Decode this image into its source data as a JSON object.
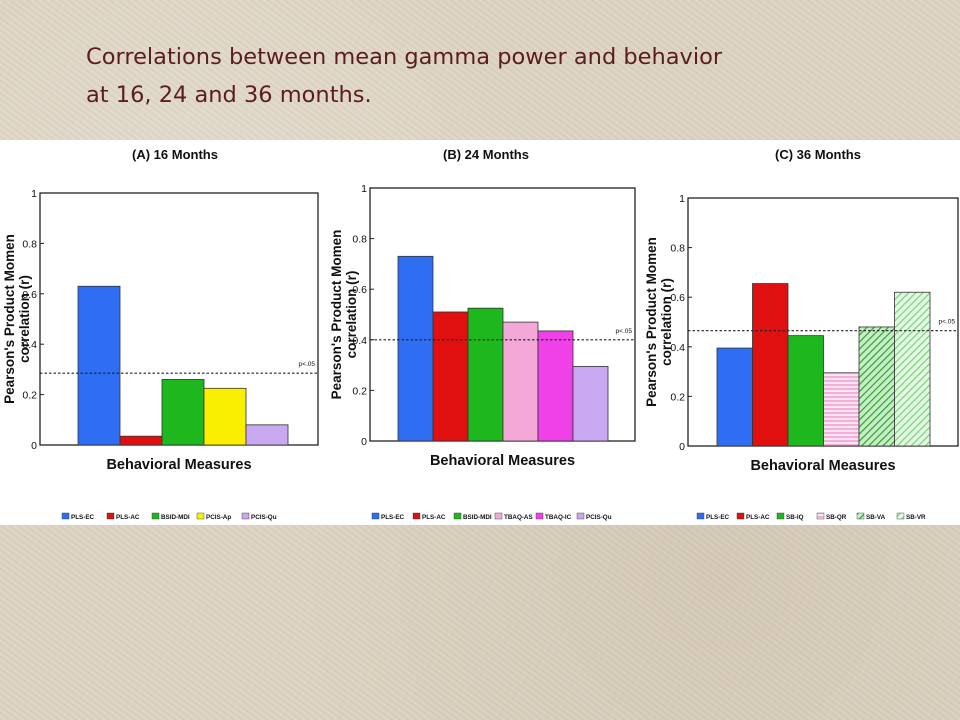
{
  "slide": {
    "title_line1": "Correlations between mean gamma power and behavior",
    "title_line2": "at 16, 24 and 36 months."
  },
  "chart_data": [
    {
      "type": "bar",
      "title": "(A) 16 Months",
      "xlabel": "Behavioral Measures",
      "ylabel": "Pearson's Product Momen correlation (r)",
      "ylim": [
        0,
        1
      ],
      "yticks": [
        "0",
        "0.2",
        "0.4",
        "0.6",
        "0.8",
        "1"
      ],
      "threshold": {
        "value": 0.285,
        "label": "p<.05"
      },
      "categories": [
        "PLS-EC",
        "PLS-AC",
        "BSID-MDI",
        "PCIS-Ap",
        "PCIS-Qu"
      ],
      "values": [
        0.63,
        0.035,
        0.26,
        0.225,
        0.08
      ],
      "colors": [
        "#2f6ef2",
        "#e01010",
        "#1eb81e",
        "#f8f000",
        "#c8a8f0"
      ],
      "patterns": [
        "solid",
        "solid",
        "solid",
        "solid",
        "solid"
      ],
      "grid": false,
      "legend_position": "bottom"
    },
    {
      "type": "bar",
      "title": "(B) 24 Months",
      "xlabel": "Behavioral Measures",
      "ylabel": "Pearson's Product Momen correlation (r)",
      "ylim": [
        0,
        1
      ],
      "yticks": [
        "0",
        "0.2",
        "0.4",
        "0.6",
        "0.8",
        "1"
      ],
      "threshold": {
        "value": 0.4,
        "label": "p<.05"
      },
      "categories": [
        "PLS-EC",
        "PLS-AC",
        "BSID-MDI",
        "TBAQ-AS",
        "TBAQ-IC",
        "PCIS-Qu"
      ],
      "values": [
        0.73,
        0.51,
        0.525,
        0.47,
        0.435,
        0.295
      ],
      "colors": [
        "#2f6ef2",
        "#e01010",
        "#1eb81e",
        "#f4a8d8",
        "#f040e8",
        "#c8a8f0"
      ],
      "patterns": [
        "solid",
        "solid",
        "solid",
        "solid",
        "solid",
        "solid"
      ],
      "grid": false,
      "legend_position": "bottom"
    },
    {
      "type": "bar",
      "title": "(C) 36 Months",
      "xlabel": "Behavioral Measures",
      "ylabel": "Pearson's Product Momen correlation (r)",
      "ylim": [
        0,
        1
      ],
      "yticks": [
        "0",
        "0.2",
        "0.4",
        "0.6",
        "0.8",
        "1"
      ],
      "threshold": {
        "value": 0.465,
        "label": "p<.05"
      },
      "categories": [
        "PLS-EC",
        "PLS-AC",
        "SB-IQ",
        "SB-QR",
        "SB-VA",
        "SB-VR"
      ],
      "values": [
        0.395,
        0.655,
        0.445,
        0.295,
        0.48,
        0.62
      ],
      "colors": [
        "#2f6ef2",
        "#e01010",
        "#1eb81e",
        "#f8c8e8",
        "#28b828",
        "#88e088"
      ],
      "patterns": [
        "solid",
        "solid",
        "solid",
        "hlines",
        "diag",
        "diag"
      ],
      "grid": false,
      "legend_position": "bottom"
    }
  ]
}
